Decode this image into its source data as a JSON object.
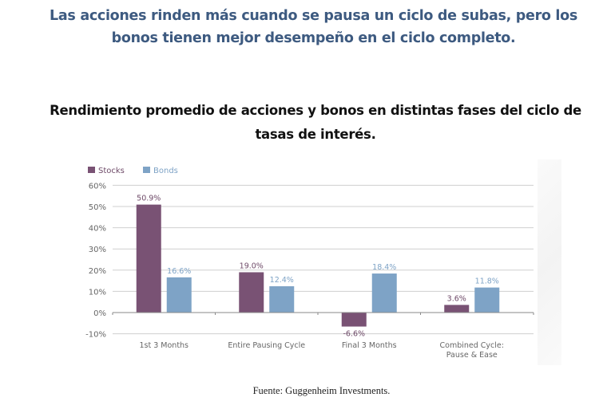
{
  "headline": "Las acciones rinden más cuando se pausa un ciclo de subas, pero los bonos tienen mejor desempeño en el ciclo completo.",
  "subtitle": "Rendimiento promedio de acciones y bonos en distintas fases del ciclo de tasas de interés.",
  "source": "Fuente: Guggenheim Investments.",
  "chart_data": {
    "type": "bar",
    "title": "Rendimiento promedio de acciones y bonos en distintas fases del ciclo de tasas de interés.",
    "xlabel": "",
    "ylabel": "",
    "categories": [
      "1st 3 Months",
      "Entire Pausing Cycle",
      "Final 3 Months",
      "Combined Cycle: Pause & Ease"
    ],
    "category_lines": [
      [
        "1st 3 Months"
      ],
      [
        "Entire Pausing Cycle"
      ],
      [
        "Final 3 Months"
      ],
      [
        "Combined Cycle:",
        "Pause & Ease"
      ]
    ],
    "series": [
      {
        "name": "Stocks",
        "color": "#795274",
        "values": [
          50.9,
          19.0,
          -6.6,
          3.6
        ],
        "labels": [
          "50.9%",
          "19.0%",
          "-6.6%",
          "3.6%"
        ]
      },
      {
        "name": "Bonds",
        "color": "#7ea3c6",
        "values": [
          16.6,
          12.4,
          18.4,
          11.8
        ],
        "labels": [
          "16.6%",
          "12.4%",
          "18.4%",
          "11.8%"
        ]
      }
    ],
    "ylim": [
      -10,
      60
    ],
    "yticks": [
      60,
      50,
      40,
      30,
      20,
      10,
      0,
      -10
    ],
    "ytick_labels": [
      "60%",
      "50%",
      "40%",
      "30%",
      "20%",
      "10%",
      "0%",
      "-10%"
    ],
    "grid": true,
    "legend_position": "top-left"
  },
  "colors": {
    "headline": "#3d5a80",
    "stocks_label": "#6e4a68",
    "bonds_label": "#7ea3c6",
    "grid": "#cfcfcf",
    "axis": "#8a8a8a",
    "tick_text": "#666666"
  }
}
